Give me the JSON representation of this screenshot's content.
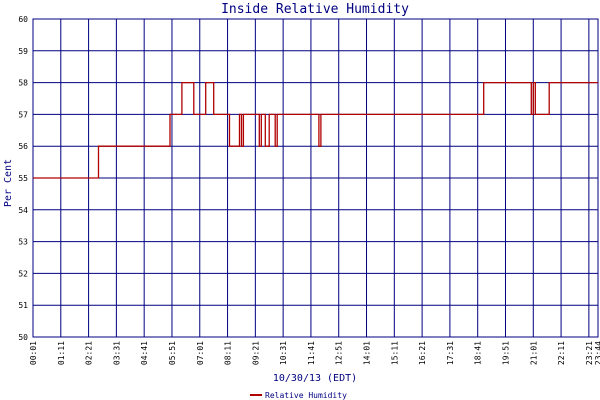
{
  "chart_data": {
    "type": "line",
    "title": "Inside Relative Humidity",
    "xlabel": "10/30/13 (EDT)",
    "ylabel": "Per Cent",
    "ylim": [
      50,
      60
    ],
    "yticks": [
      "50",
      "51",
      "52",
      "53",
      "54",
      "55",
      "56",
      "57",
      "58",
      "59",
      "60"
    ],
    "xticks": [
      "00:01",
      "01:11",
      "02:21",
      "03:31",
      "04:41",
      "05:51",
      "07:01",
      "08:11",
      "09:21",
      "10:31",
      "11:41",
      "12:51",
      "14:01",
      "15:11",
      "16:21",
      "17:31",
      "18:41",
      "19:51",
      "21:01",
      "22:11",
      "23:21",
      "23:44"
    ],
    "grid": true,
    "legend": "bottom-center",
    "colors": {
      "series": "#b00000",
      "grid": "#000080",
      "text": "#000080"
    },
    "series": [
      {
        "name": "Relative Humidity",
        "points": [
          [
            "00:01",
            55
          ],
          [
            "02:46",
            55
          ],
          [
            "02:46",
            56
          ],
          [
            "05:46",
            56
          ],
          [
            "05:46",
            57
          ],
          [
            "06:16",
            57
          ],
          [
            "06:16",
            58
          ],
          [
            "06:46",
            58
          ],
          [
            "06:46",
            57
          ],
          [
            "07:16",
            57
          ],
          [
            "07:16",
            58
          ],
          [
            "07:36",
            58
          ],
          [
            "07:36",
            57
          ],
          [
            "08:16",
            57
          ],
          [
            "08:16",
            56
          ],
          [
            "08:41",
            56
          ],
          [
            "08:41",
            57
          ],
          [
            "08:46",
            57
          ],
          [
            "08:46",
            56
          ],
          [
            "08:51",
            56
          ],
          [
            "08:51",
            57
          ],
          [
            "09:31",
            57
          ],
          [
            "09:31",
            56
          ],
          [
            "09:36",
            56
          ],
          [
            "09:36",
            57
          ],
          [
            "09:46",
            57
          ],
          [
            "09:46",
            56
          ],
          [
            "09:56",
            56
          ],
          [
            "09:56",
            57
          ],
          [
            "10:11",
            57
          ],
          [
            "10:11",
            56
          ],
          [
            "10:16",
            56
          ],
          [
            "10:16",
            57
          ],
          [
            "12:01",
            57
          ],
          [
            "12:01",
            56
          ],
          [
            "12:06",
            56
          ],
          [
            "12:06",
            57
          ],
          [
            "18:56",
            57
          ],
          [
            "18:56",
            58
          ],
          [
            "20:56",
            58
          ],
          [
            "20:56",
            57
          ],
          [
            "21:01",
            57
          ],
          [
            "21:01",
            58
          ],
          [
            "21:06",
            58
          ],
          [
            "21:06",
            57
          ],
          [
            "21:41",
            57
          ],
          [
            "21:41",
            58
          ],
          [
            "23:44",
            58
          ]
        ]
      }
    ]
  }
}
